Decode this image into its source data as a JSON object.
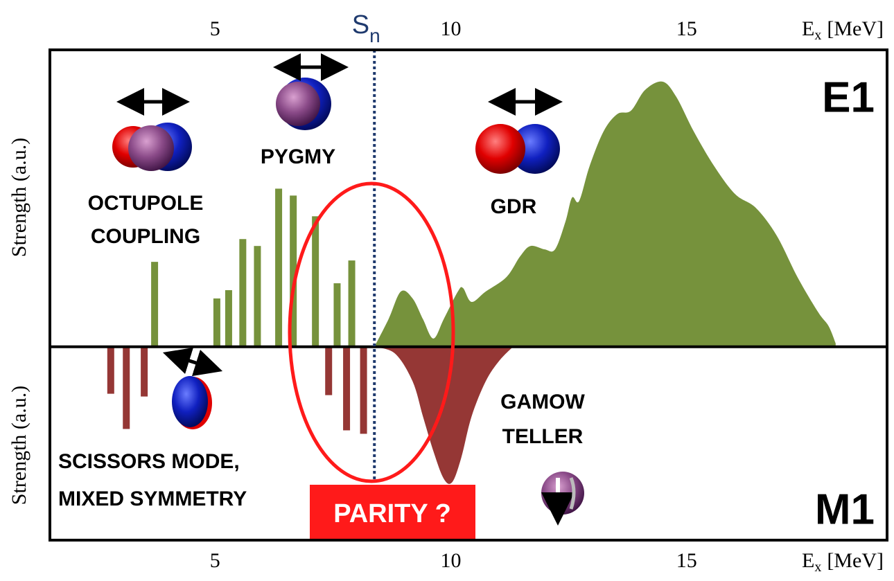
{
  "chart_data": {
    "type": "combo",
    "xlabel": {
      "main": "E",
      "sub": "x",
      "unit": "[MeV]"
    },
    "ylabels": [
      "Strength (a.u.)",
      "Strength (a.u.)"
    ],
    "xlim": [
      1.5,
      19.25
    ],
    "xticks": [
      5,
      10,
      15
    ],
    "ylim": [
      -28,
      43
    ],
    "sn": {
      "main": "S",
      "sub": "n",
      "x": 8.38
    },
    "e1": {
      "label": "E1",
      "color": "#76923c",
      "bars": {
        "x": [
          3.72,
          5.04,
          5.29,
          5.59,
          5.9,
          6.35,
          6.66,
          7.13,
          7.59,
          7.9
        ],
        "values": [
          12.3,
          7.0,
          8.2,
          15.6,
          14.6,
          22.9,
          21.9,
          18.9,
          9.2,
          12.5
        ]
      },
      "area": {
        "x": [
          8.38,
          8.68,
          8.94,
          9.19,
          9.41,
          9.63,
          9.85,
          10.15,
          10.26,
          10.44,
          10.74,
          11.18,
          11.47,
          11.69,
          11.99,
          12.21,
          12.43,
          12.57,
          12.72,
          12.94,
          13.24,
          13.53,
          13.82,
          14.12,
          14.49,
          14.78,
          15.15,
          15.59,
          16.03,
          16.47,
          16.91,
          17.35,
          17.79,
          18.01,
          18.16
        ],
        "values": [
          0,
          4.0,
          8.0,
          7.0,
          4.0,
          1.2,
          4.0,
          8.0,
          8.5,
          6.5,
          8.0,
          10.1,
          13.1,
          14.6,
          14.1,
          14.1,
          18.1,
          21.6,
          21.1,
          26.1,
          31.2,
          33.7,
          34.2,
          37.2,
          38.4,
          36.2,
          31.2,
          26.1,
          22.1,
          20.1,
          16.1,
          10.1,
          5.0,
          3.0,
          0.5
        ]
      }
    },
    "m1": {
      "label": "M1",
      "color": "#953735",
      "bars": {
        "x": [
          2.79,
          3.12,
          3.5,
          7.41,
          7.79,
          8.15
        ],
        "values": [
          -6.8,
          -11.9,
          -7.2,
          -7.0,
          -12.1,
          -12.6
        ]
      },
      "area": {
        "x": [
          8.38,
          8.82,
          9.19,
          9.41,
          9.63,
          9.85,
          10.03,
          10.22,
          10.44,
          10.74,
          11.03,
          11.32
        ],
        "values": [
          0,
          -1.0,
          -5.0,
          -10.1,
          -15.1,
          -19.1,
          -19.6,
          -16.1,
          -10.1,
          -5.0,
          -2.0,
          0
        ]
      }
    },
    "annotations": {
      "octupole": [
        "OCTUPOLE",
        "COUPLING"
      ],
      "pygmy": "PYGMY",
      "gdr": "GDR",
      "gamow_teller": [
        "GAMOW",
        "TELLER"
      ],
      "scissors": [
        "SCISSORS MODE,",
        "MIXED SYMMETRY"
      ],
      "parity": "PARITY ?"
    }
  }
}
